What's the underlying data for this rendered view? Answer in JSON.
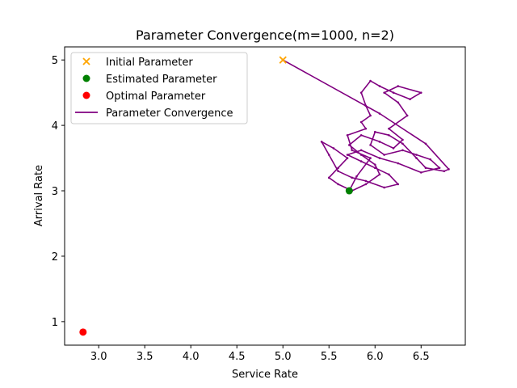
{
  "chart_data": {
    "type": "scatter",
    "title": "Parameter Convergence(m=1000, n=2)",
    "xlabel": "Service Rate",
    "ylabel": "Arrival Rate",
    "xlim": [
      2.63,
      6.98
    ],
    "ylim": [
      0.64,
      5.2
    ],
    "xticks": [
      "3.0",
      "3.5",
      "4.0",
      "4.5",
      "5.0",
      "5.5",
      "6.0",
      "6.5"
    ],
    "yticks": [
      "1",
      "2",
      "3",
      "4",
      "5"
    ],
    "grid": false,
    "legend_position": "top-left",
    "points": [
      {
        "name": "Initial Parameter",
        "marker": "x",
        "color": "#ffa500",
        "x": 5.0,
        "y": 5.0
      },
      {
        "name": "Estimated Parameter",
        "marker": "circle",
        "color": "#008000",
        "x": 5.72,
        "y": 3.0
      },
      {
        "name": "Optimal Parameter",
        "marker": "circle",
        "color": "#ff0000",
        "x": 2.83,
        "y": 0.84
      }
    ],
    "series": [
      {
        "name": "Parameter Convergence",
        "color": "#800080",
        "x": [
          5.0,
          6.05,
          6.55,
          6.8,
          6.75,
          6.55,
          6.45,
          6.3,
          6.15,
          6.0,
          5.95,
          6.1,
          6.3,
          6.45,
          6.6,
          6.7,
          6.5,
          6.25,
          6.05,
          5.85,
          5.7,
          5.85,
          6.0,
          6.15,
          6.25,
          6.1,
          5.9,
          5.75,
          5.6,
          5.5,
          5.42,
          5.55,
          5.7,
          5.6,
          5.5,
          5.6,
          5.75,
          5.9,
          6.05,
          6.0,
          5.85,
          5.72,
          5.85,
          6.05,
          6.2,
          6.3,
          6.15,
          6.35,
          6.25,
          6.1,
          6.25,
          6.5,
          6.38,
          6.2,
          6.05,
          5.95,
          5.85,
          5.9,
          5.95,
          5.85,
          5.9,
          5.7,
          5.75,
          5.95,
          5.8,
          5.72
        ],
        "y": [
          5.0,
          4.18,
          3.72,
          3.33,
          3.3,
          3.35,
          3.5,
          3.72,
          3.85,
          3.9,
          3.7,
          3.55,
          3.62,
          3.55,
          3.48,
          3.35,
          3.28,
          3.42,
          3.5,
          3.62,
          3.55,
          3.45,
          3.35,
          3.25,
          3.1,
          3.05,
          3.15,
          3.2,
          3.3,
          3.55,
          3.75,
          3.65,
          3.5,
          3.35,
          3.2,
          3.1,
          3.0,
          3.1,
          3.25,
          3.4,
          3.55,
          3.7,
          3.85,
          3.75,
          3.65,
          3.78,
          3.95,
          4.15,
          4.35,
          4.5,
          4.6,
          4.5,
          4.4,
          4.5,
          4.6,
          4.68,
          4.5,
          4.3,
          4.15,
          4.05,
          3.95,
          3.85,
          3.62,
          3.5,
          3.22,
          3.0
        ]
      }
    ]
  }
}
